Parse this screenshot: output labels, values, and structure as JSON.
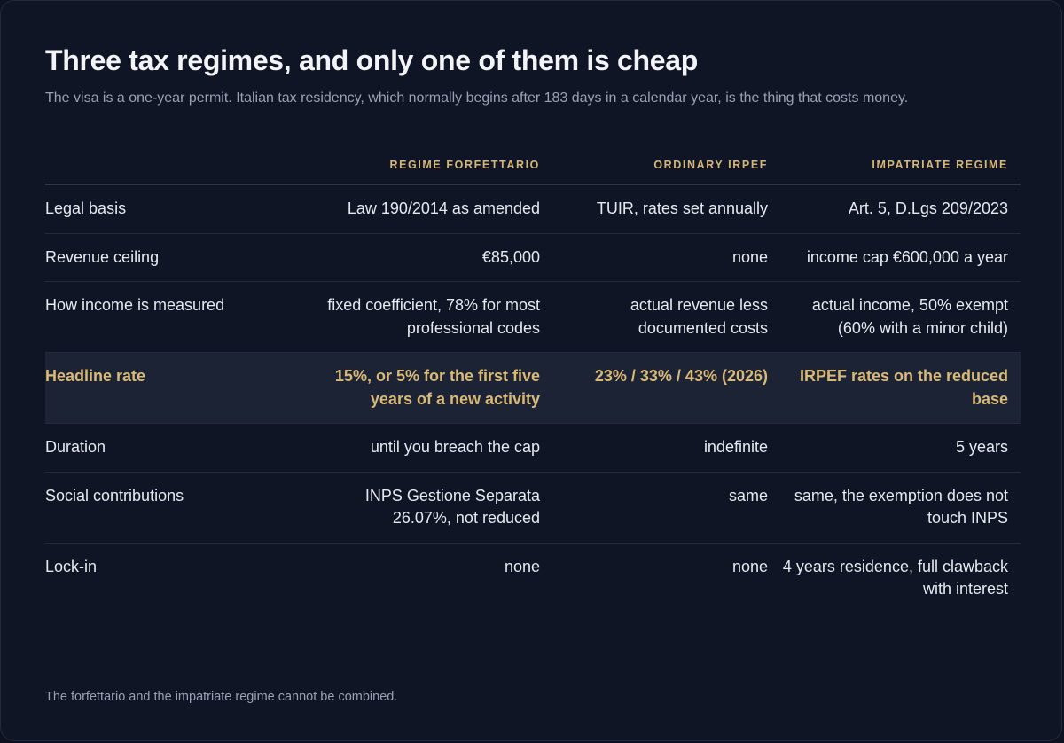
{
  "title": "Three tax regimes, and only one of them is cheap",
  "subtitle": "The visa is a one-year permit. Italian tax residency, which normally begins after 183 days in a calendar year, is the thing that costs money.",
  "columns": [
    "",
    "REGIME FORFETTARIO",
    "ORDINARY IRPEF",
    "IMPATRIATE REGIME"
  ],
  "rows": [
    {
      "label": "Legal basis",
      "forfettario": "Law 190/2014 as amended",
      "irpef": "TUIR, rates set annually",
      "impatriate": "Art. 5, D.Lgs 209/2023"
    },
    {
      "label": "Revenue ceiling",
      "forfettario": "€85,000",
      "irpef": "none",
      "impatriate": "income cap €600,000 a year"
    },
    {
      "label": "How income is measured",
      "forfettario": "fixed coefficient, 78% for most professional codes",
      "irpef": "actual revenue less documented costs",
      "impatriate": "actual income, 50% exempt (60% with a minor child)"
    },
    {
      "label": "Headline rate",
      "forfettario": "15%, or 5% for the first five years of a new activity",
      "irpef": "23% / 33% / 43% (2026)",
      "impatriate": "IRPEF rates on the reduced base"
    },
    {
      "label": "Duration",
      "forfettario": "until you breach the cap",
      "irpef": "indefinite",
      "impatriate": "5 years"
    },
    {
      "label": "Social contributions",
      "forfettario": "INPS Gestione Separata 26.07%, not reduced",
      "irpef": "same",
      "impatriate": "same, the exemption does not touch INPS"
    },
    {
      "label": "Lock-in",
      "forfettario": "none",
      "irpef": "none",
      "impatriate": "4 years residence, full clawback with interest"
    }
  ],
  "highlighted_row": "Headline rate",
  "footnote": "The forfettario and the impatriate regime cannot be combined.",
  "colors": {
    "background": "#0f1525",
    "accent": "#d4b677",
    "highlight_row": "#1b2335"
  }
}
